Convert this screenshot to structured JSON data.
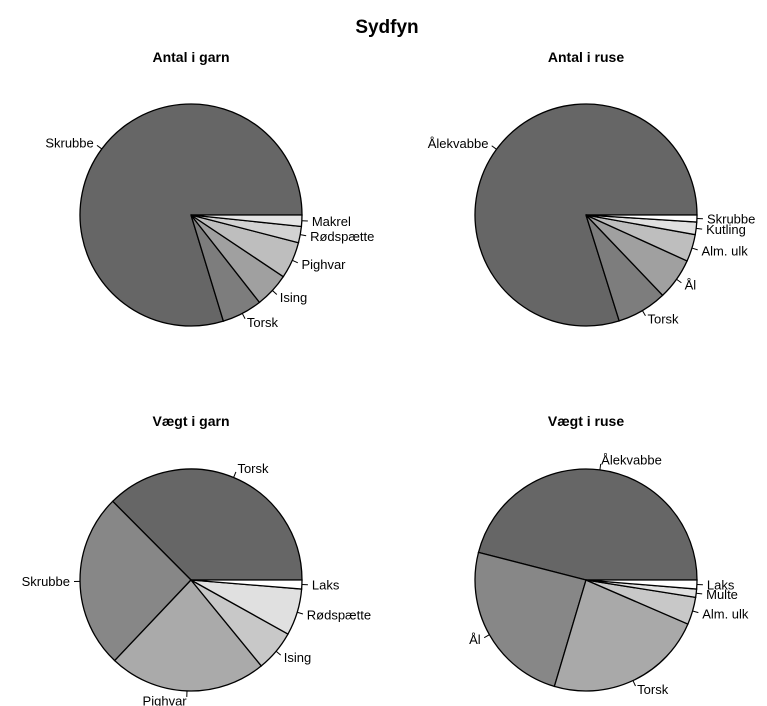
{
  "title": "Sydfyn",
  "chart_data": [
    {
      "type": "pie",
      "title": "Antal i garn",
      "slices": [
        {
          "label": "Skrubbe",
          "value": 77.4,
          "color": "#666666"
        },
        {
          "label": "Torsk",
          "value": 5.7,
          "color": "#7d7d7d"
        },
        {
          "label": "Ising",
          "value": 4.9,
          "color": "#a0a0a0"
        },
        {
          "label": "Pighvar",
          "value": 5.2,
          "color": "#bebebe"
        },
        {
          "label": "Rødspætte",
          "value": 2.3,
          "color": "#d2d2d2"
        },
        {
          "label": "Makrel",
          "value": 1.6,
          "color": "#e5e5e5"
        }
      ]
    },
    {
      "type": "pie",
      "title": "Antal i ruse",
      "slices": [
        {
          "label": "Ålekvabbe",
          "value": 78.8,
          "color": "#666666"
        },
        {
          "label": "Torsk",
          "value": 7.2,
          "color": "#7d7d7d"
        },
        {
          "label": "Ål",
          "value": 6.0,
          "color": "#a0a0a0"
        },
        {
          "label": "Alm. ulk",
          "value": 3.9,
          "color": "#bebebe"
        },
        {
          "label": "Kutling",
          "value": 1.8,
          "color": "#e0e0e0"
        },
        {
          "label": "Skrubbe",
          "value": 1.0,
          "color": "#ffffff"
        }
      ]
    },
    {
      "type": "pie",
      "title": "Vægt i garn",
      "slices": [
        {
          "label": "Torsk",
          "value": 37.5,
          "color": "#666666"
        },
        {
          "label": "Skrubbe",
          "value": 25.5,
          "color": "#878787"
        },
        {
          "label": "Pighvar",
          "value": 23.0,
          "color": "#aaaaaa"
        },
        {
          "label": "Ising",
          "value": 6.0,
          "color": "#c8c8c8"
        },
        {
          "label": "Rødspætte",
          "value": 6.8,
          "color": "#e0e0e0"
        },
        {
          "label": "Laks",
          "value": 1.3,
          "color": "#ffffff"
        }
      ]
    },
    {
      "type": "pie",
      "title": "Vægt i ruse",
      "slices": [
        {
          "label": "Ålekvabbe",
          "value": 46.0,
          "color": "#666666"
        },
        {
          "label": "Ål",
          "value": 24.4,
          "color": "#878787"
        },
        {
          "label": "Torsk",
          "value": 23.1,
          "color": "#a9a9a9"
        },
        {
          "label": "Alm. ulk",
          "value": 4.0,
          "color": "#c8c8c8"
        },
        {
          "label": "Multe",
          "value": 1.2,
          "color": "#e0e0e0"
        },
        {
          "label": "Laks",
          "value": 1.3,
          "color": "#ffffff"
        }
      ]
    }
  ]
}
